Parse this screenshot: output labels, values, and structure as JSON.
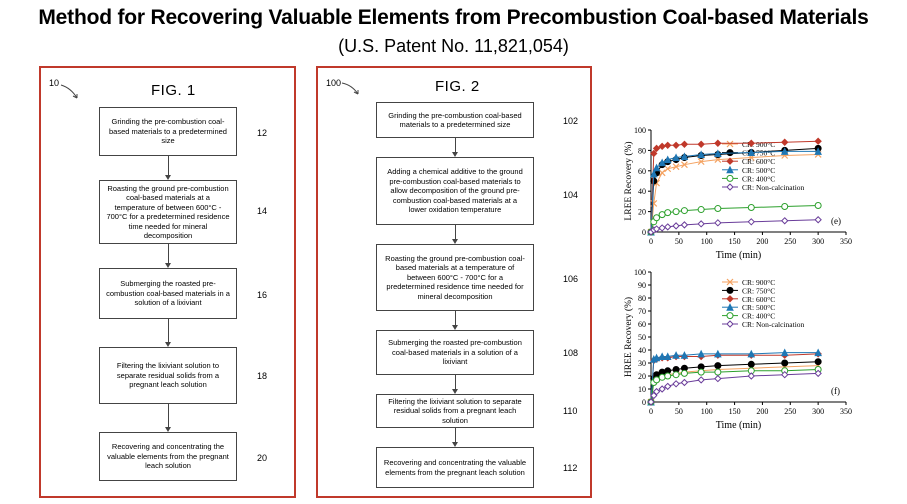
{
  "header": {
    "title": "Method for Recovering Valuable Elements from Precombustion Coal-based Materials",
    "subtitle": "(U.S. Patent No. 11,821,054)"
  },
  "fig1": {
    "title": "FIG. 1",
    "ref": "10",
    "steps": [
      {
        "text": "Grinding the pre-combustion coal-based materials to a predetermined size",
        "num": "12"
      },
      {
        "text": "Roasting the ground pre-combustion coal-based materials at a temperature of between 600°C - 700°C for a predetermined residence time needed for mineral decomposition",
        "num": "14"
      },
      {
        "text": "Submerging the roasted pre-combustion coal-based materials in a solution of a lixiviant",
        "num": "16"
      },
      {
        "text": "Filtering the lixiviant solution to separate residual solids from a pregnant leach solution",
        "num": "18"
      },
      {
        "text": "Recovering and concentrating the valuable elements from the pregnant leach solution",
        "num": "20"
      }
    ]
  },
  "fig2": {
    "title": "FIG. 2",
    "ref": "100",
    "steps": [
      {
        "text": "Grinding the pre-combustion coal-based materials to a predetermined size",
        "num": "102"
      },
      {
        "text": "Adding a chemical additive to the ground pre-combustion coal-based materials to allow decomposition of the ground pre-combustion coal-based materials at a lower oxidation temperature",
        "num": "104"
      },
      {
        "text": "Roasting the ground pre-combustion coal-based materials at a temperature of between 600°C - 700°C for a predetermined residence time needed for mineral decomposition",
        "num": "106"
      },
      {
        "text": "Submerging the roasted pre-combustion coal-based materials in a solution of a lixiviant",
        "num": "108"
      },
      {
        "text": "Filtering the lixiviant solution to separate residual solids from a pregnant leach solution",
        "num": "110"
      },
      {
        "text": "Recovering and concentrating the valuable elements from the pregnant leach solution",
        "num": "112"
      }
    ]
  },
  "chart_data": [
    {
      "type": "line",
      "panel_label": "(e)",
      "ylabel": "LREE Recovery (%)",
      "xlabel": "Time (min)",
      "xlim": [
        0,
        350
      ],
      "ylim": [
        0,
        100
      ],
      "xticks": [
        0,
        50,
        100,
        150,
        200,
        250,
        300,
        350
      ],
      "yticks": [
        0,
        20,
        40,
        60,
        80,
        100
      ],
      "legend_position": "right-center",
      "x": [
        0,
        5,
        10,
        20,
        30,
        45,
        60,
        90,
        120,
        180,
        240,
        300
      ],
      "series": [
        {
          "name": "CR: 900°C",
          "color": "#f4a261",
          "marker": "x",
          "values": [
            0,
            28,
            48,
            58,
            62,
            64,
            66,
            69,
            71,
            73,
            75,
            76
          ]
        },
        {
          "name": "CR: 750°C",
          "color": "#000000",
          "marker": "circle-filled",
          "values": [
            0,
            50,
            58,
            66,
            69,
            71,
            73,
            75,
            76,
            78,
            80,
            82
          ]
        },
        {
          "name": "CR: 600°C",
          "color": "#c0392b",
          "marker": "diamond",
          "values": [
            0,
            77,
            82,
            84,
            85,
            85,
            86,
            86,
            87,
            87,
            88,
            89
          ]
        },
        {
          "name": "CR: 500°C",
          "color": "#1f77b4",
          "marker": "triangle",
          "values": [
            0,
            57,
            63,
            68,
            71,
            73,
            74,
            76,
            77,
            78,
            79,
            79
          ]
        },
        {
          "name": "CR: 400°C",
          "color": "#2ca02c",
          "marker": "circle-open",
          "values": [
            0,
            10,
            14,
            17,
            19,
            20,
            21,
            22,
            23,
            24,
            25,
            26
          ]
        },
        {
          "name": "CR: Non-calcination",
          "color": "#6a3d9a",
          "marker": "diamond-open",
          "values": [
            0,
            2,
            3,
            4,
            5,
            6,
            7,
            8,
            9,
            10,
            11,
            12
          ]
        }
      ]
    },
    {
      "type": "line",
      "panel_label": "(f)",
      "ylabel": "HREE Recovery (%)",
      "xlabel": "Time (min)",
      "xlim": [
        0,
        350
      ],
      "ylim": [
        0,
        100
      ],
      "xticks": [
        0,
        50,
        100,
        150,
        200,
        250,
        300,
        350
      ],
      "yticks": [
        0,
        10,
        20,
        30,
        40,
        50,
        60,
        70,
        80,
        90,
        100
      ],
      "legend_position": "top-right",
      "x": [
        0,
        5,
        10,
        20,
        30,
        45,
        60,
        90,
        120,
        180,
        240,
        300
      ],
      "series": [
        {
          "name": "CR: 900°C",
          "color": "#f4a261",
          "marker": "x",
          "values": [
            0,
            16,
            18,
            20,
            21,
            22,
            23,
            24,
            25,
            26,
            27,
            28
          ]
        },
        {
          "name": "CR: 750°C",
          "color": "#000000",
          "marker": "circle-filled",
          "values": [
            0,
            18,
            21,
            23,
            24,
            25,
            26,
            27,
            28,
            29,
            30,
            31
          ]
        },
        {
          "name": "CR: 600°C",
          "color": "#c0392b",
          "marker": "diamond",
          "values": [
            0,
            32,
            33,
            34,
            34,
            35,
            35,
            35,
            36,
            36,
            36,
            37
          ]
        },
        {
          "name": "CR: 500°C",
          "color": "#1f77b4",
          "marker": "triangle",
          "values": [
            0,
            33,
            34,
            35,
            35,
            36,
            36,
            37,
            37,
            37,
            38,
            38
          ]
        },
        {
          "name": "CR: 400°C",
          "color": "#2ca02c",
          "marker": "circle-open",
          "values": [
            0,
            15,
            17,
            19,
            20,
            21,
            22,
            23,
            23,
            24,
            24,
            25
          ]
        },
        {
          "name": "CR: Non-calcination",
          "color": "#6a3d9a",
          "marker": "diamond-open",
          "values": [
            0,
            5,
            8,
            10,
            12,
            14,
            15,
            17,
            18,
            20,
            21,
            22
          ]
        }
      ]
    }
  ]
}
